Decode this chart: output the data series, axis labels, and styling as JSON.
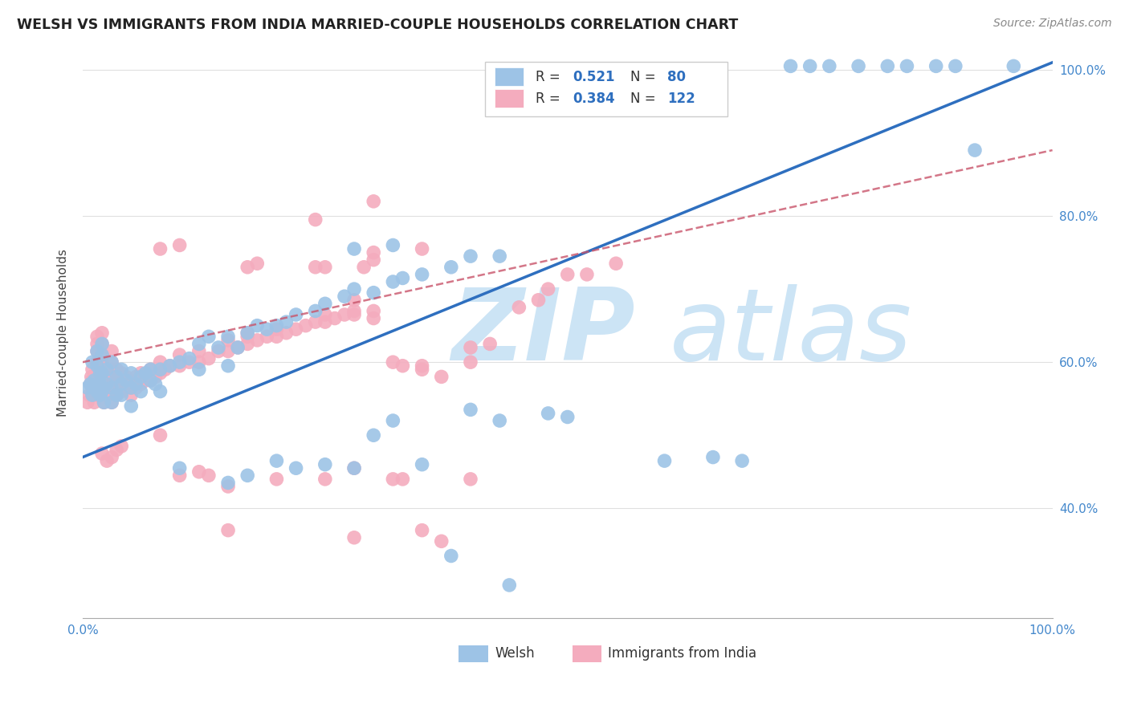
{
  "title": "WELSH VS IMMIGRANTS FROM INDIA MARRIED-COUPLE HOUSEHOLDS CORRELATION CHART",
  "source": "Source: ZipAtlas.com",
  "ylabel": "Married-couple Households",
  "xlim": [
    0,
    1
  ],
  "ylim": [
    0.25,
    1.03
  ],
  "xtick_pos": [
    0.0,
    0.1,
    0.2,
    0.3,
    0.4,
    0.5,
    0.6,
    0.7,
    0.8,
    0.9,
    1.0
  ],
  "ytick_pos": [
    0.4,
    0.6,
    0.8,
    1.0
  ],
  "xtick_labels": [
    "0.0%",
    "",
    "",
    "",
    "",
    "",
    "",
    "",
    "",
    "",
    "100.0%"
  ],
  "ytick_labels": [
    "40.0%",
    "60.0%",
    "80.0%",
    "100.0%"
  ],
  "welsh_color": "#9DC3E6",
  "india_color": "#F4ACBE",
  "welsh_line_color": "#2E6FBF",
  "india_line_color": "#C9546A",
  "welsh_R": 0.521,
  "welsh_N": 80,
  "india_R": 0.384,
  "india_N": 122,
  "background_color": "#ffffff",
  "grid_color": "#e0e0e0",
  "watermark_zip": "ZIP",
  "watermark_atlas": "atlas",
  "watermark_color": "#cce4f5",
  "legend_R_color": "#2E6FBF",
  "welsh_trend": [
    0.0,
    0.47,
    1.0,
    1.01
  ],
  "india_trend": [
    0.0,
    0.6,
    1.0,
    0.89
  ],
  "welsh_scatter": [
    [
      0.005,
      0.565
    ],
    [
      0.008,
      0.57
    ],
    [
      0.01,
      0.555
    ],
    [
      0.01,
      0.6
    ],
    [
      0.012,
      0.575
    ],
    [
      0.015,
      0.56
    ],
    [
      0.015,
      0.595
    ],
    [
      0.015,
      0.615
    ],
    [
      0.018,
      0.57
    ],
    [
      0.018,
      0.585
    ],
    [
      0.018,
      0.555
    ],
    [
      0.02,
      0.56
    ],
    [
      0.02,
      0.585
    ],
    [
      0.02,
      0.61
    ],
    [
      0.02,
      0.625
    ],
    [
      0.022,
      0.545
    ],
    [
      0.025,
      0.57
    ],
    [
      0.025,
      0.59
    ],
    [
      0.03,
      0.545
    ],
    [
      0.03,
      0.565
    ],
    [
      0.03,
      0.6
    ],
    [
      0.035,
      0.58
    ],
    [
      0.035,
      0.555
    ],
    [
      0.04,
      0.57
    ],
    [
      0.04,
      0.59
    ],
    [
      0.04,
      0.555
    ],
    [
      0.045,
      0.575
    ],
    [
      0.05,
      0.565
    ],
    [
      0.05,
      0.585
    ],
    [
      0.05,
      0.54
    ],
    [
      0.055,
      0.57
    ],
    [
      0.06,
      0.58
    ],
    [
      0.06,
      0.56
    ],
    [
      0.065,
      0.585
    ],
    [
      0.07,
      0.575
    ],
    [
      0.07,
      0.59
    ],
    [
      0.075,
      0.57
    ],
    [
      0.08,
      0.59
    ],
    [
      0.08,
      0.56
    ],
    [
      0.09,
      0.595
    ],
    [
      0.1,
      0.6
    ],
    [
      0.11,
      0.605
    ],
    [
      0.12,
      0.625
    ],
    [
      0.12,
      0.59
    ],
    [
      0.13,
      0.635
    ],
    [
      0.14,
      0.62
    ],
    [
      0.15,
      0.635
    ],
    [
      0.15,
      0.595
    ],
    [
      0.16,
      0.62
    ],
    [
      0.17,
      0.64
    ],
    [
      0.18,
      0.65
    ],
    [
      0.19,
      0.645
    ],
    [
      0.2,
      0.65
    ],
    [
      0.21,
      0.655
    ],
    [
      0.22,
      0.665
    ],
    [
      0.24,
      0.67
    ],
    [
      0.25,
      0.68
    ],
    [
      0.27,
      0.69
    ],
    [
      0.28,
      0.7
    ],
    [
      0.3,
      0.695
    ],
    [
      0.32,
      0.71
    ],
    [
      0.33,
      0.715
    ],
    [
      0.35,
      0.72
    ],
    [
      0.38,
      0.73
    ],
    [
      0.4,
      0.745
    ],
    [
      0.43,
      0.745
    ],
    [
      0.1,
      0.455
    ],
    [
      0.15,
      0.435
    ],
    [
      0.17,
      0.445
    ],
    [
      0.2,
      0.465
    ],
    [
      0.22,
      0.455
    ],
    [
      0.25,
      0.46
    ],
    [
      0.28,
      0.455
    ],
    [
      0.3,
      0.5
    ],
    [
      0.32,
      0.52
    ],
    [
      0.35,
      0.46
    ],
    [
      0.4,
      0.535
    ],
    [
      0.43,
      0.52
    ],
    [
      0.48,
      0.53
    ],
    [
      0.5,
      0.525
    ],
    [
      0.6,
      0.465
    ],
    [
      0.65,
      0.47
    ],
    [
      0.68,
      0.465
    ],
    [
      0.73,
      1.005
    ],
    [
      0.75,
      1.005
    ],
    [
      0.77,
      1.005
    ],
    [
      0.8,
      1.005
    ],
    [
      0.83,
      1.005
    ],
    [
      0.85,
      1.005
    ],
    [
      0.88,
      1.005
    ],
    [
      0.9,
      1.005
    ],
    [
      0.92,
      0.89
    ],
    [
      0.96,
      1.005
    ],
    [
      0.28,
      0.755
    ],
    [
      0.32,
      0.76
    ],
    [
      0.38,
      0.335
    ],
    [
      0.44,
      0.295
    ]
  ],
  "india_scatter": [
    [
      0.005,
      0.545
    ],
    [
      0.007,
      0.555
    ],
    [
      0.008,
      0.57
    ],
    [
      0.009,
      0.58
    ],
    [
      0.01,
      0.555
    ],
    [
      0.01,
      0.565
    ],
    [
      0.01,
      0.575
    ],
    [
      0.01,
      0.59
    ],
    [
      0.012,
      0.545
    ],
    [
      0.012,
      0.56
    ],
    [
      0.012,
      0.575
    ],
    [
      0.015,
      0.555
    ],
    [
      0.015,
      0.57
    ],
    [
      0.015,
      0.585
    ],
    [
      0.015,
      0.6
    ],
    [
      0.015,
      0.615
    ],
    [
      0.015,
      0.625
    ],
    [
      0.015,
      0.635
    ],
    [
      0.018,
      0.555
    ],
    [
      0.018,
      0.57
    ],
    [
      0.018,
      0.585
    ],
    [
      0.02,
      0.555
    ],
    [
      0.02,
      0.565
    ],
    [
      0.02,
      0.575
    ],
    [
      0.02,
      0.585
    ],
    [
      0.02,
      0.6
    ],
    [
      0.02,
      0.61
    ],
    [
      0.02,
      0.625
    ],
    [
      0.02,
      0.64
    ],
    [
      0.022,
      0.545
    ],
    [
      0.022,
      0.56
    ],
    [
      0.025,
      0.555
    ],
    [
      0.025,
      0.565
    ],
    [
      0.025,
      0.58
    ],
    [
      0.03,
      0.545
    ],
    [
      0.03,
      0.56
    ],
    [
      0.03,
      0.575
    ],
    [
      0.03,
      0.59
    ],
    [
      0.03,
      0.6
    ],
    [
      0.03,
      0.615
    ],
    [
      0.035,
      0.555
    ],
    [
      0.035,
      0.565
    ],
    [
      0.035,
      0.58
    ],
    [
      0.035,
      0.59
    ],
    [
      0.04,
      0.56
    ],
    [
      0.04,
      0.575
    ],
    [
      0.04,
      0.585
    ],
    [
      0.045,
      0.565
    ],
    [
      0.045,
      0.58
    ],
    [
      0.05,
      0.555
    ],
    [
      0.05,
      0.565
    ],
    [
      0.05,
      0.575
    ],
    [
      0.055,
      0.565
    ],
    [
      0.055,
      0.58
    ],
    [
      0.06,
      0.57
    ],
    [
      0.06,
      0.585
    ],
    [
      0.065,
      0.575
    ],
    [
      0.07,
      0.575
    ],
    [
      0.07,
      0.59
    ],
    [
      0.075,
      0.58
    ],
    [
      0.08,
      0.585
    ],
    [
      0.08,
      0.6
    ],
    [
      0.085,
      0.59
    ],
    [
      0.09,
      0.595
    ],
    [
      0.1,
      0.595
    ],
    [
      0.1,
      0.61
    ],
    [
      0.11,
      0.6
    ],
    [
      0.12,
      0.6
    ],
    [
      0.12,
      0.615
    ],
    [
      0.13,
      0.605
    ],
    [
      0.14,
      0.615
    ],
    [
      0.15,
      0.615
    ],
    [
      0.15,
      0.63
    ],
    [
      0.16,
      0.62
    ],
    [
      0.17,
      0.625
    ],
    [
      0.17,
      0.635
    ],
    [
      0.17,
      0.64
    ],
    [
      0.18,
      0.63
    ],
    [
      0.19,
      0.635
    ],
    [
      0.2,
      0.635
    ],
    [
      0.2,
      0.645
    ],
    [
      0.21,
      0.64
    ],
    [
      0.22,
      0.645
    ],
    [
      0.23,
      0.65
    ],
    [
      0.24,
      0.655
    ],
    [
      0.24,
      0.73
    ],
    [
      0.25,
      0.655
    ],
    [
      0.25,
      0.665
    ],
    [
      0.26,
      0.66
    ],
    [
      0.27,
      0.665
    ],
    [
      0.28,
      0.665
    ],
    [
      0.28,
      0.67
    ],
    [
      0.3,
      0.67
    ],
    [
      0.3,
      0.66
    ],
    [
      0.32,
      0.6
    ],
    [
      0.33,
      0.595
    ],
    [
      0.35,
      0.595
    ],
    [
      0.35,
      0.59
    ],
    [
      0.37,
      0.58
    ],
    [
      0.4,
      0.62
    ],
    [
      0.4,
      0.6
    ],
    [
      0.42,
      0.625
    ],
    [
      0.02,
      0.475
    ],
    [
      0.025,
      0.465
    ],
    [
      0.03,
      0.47
    ],
    [
      0.035,
      0.48
    ],
    [
      0.04,
      0.485
    ],
    [
      0.08,
      0.5
    ],
    [
      0.1,
      0.445
    ],
    [
      0.12,
      0.45
    ],
    [
      0.13,
      0.445
    ],
    [
      0.15,
      0.43
    ],
    [
      0.15,
      0.37
    ],
    [
      0.2,
      0.44
    ],
    [
      0.25,
      0.44
    ],
    [
      0.28,
      0.455
    ],
    [
      0.28,
      0.36
    ],
    [
      0.32,
      0.44
    ],
    [
      0.33,
      0.44
    ],
    [
      0.35,
      0.37
    ],
    [
      0.37,
      0.355
    ],
    [
      0.08,
      0.755
    ],
    [
      0.1,
      0.76
    ],
    [
      0.17,
      0.73
    ],
    [
      0.18,
      0.735
    ],
    [
      0.24,
      0.795
    ],
    [
      0.25,
      0.73
    ],
    [
      0.28,
      0.685
    ],
    [
      0.29,
      0.73
    ],
    [
      0.3,
      0.74
    ],
    [
      0.3,
      0.75
    ],
    [
      0.35,
      0.755
    ],
    [
      0.4,
      0.44
    ],
    [
      0.45,
      0.675
    ],
    [
      0.47,
      0.685
    ],
    [
      0.48,
      0.7
    ],
    [
      0.5,
      0.72
    ],
    [
      0.52,
      0.72
    ],
    [
      0.55,
      0.735
    ],
    [
      0.3,
      0.82
    ]
  ]
}
